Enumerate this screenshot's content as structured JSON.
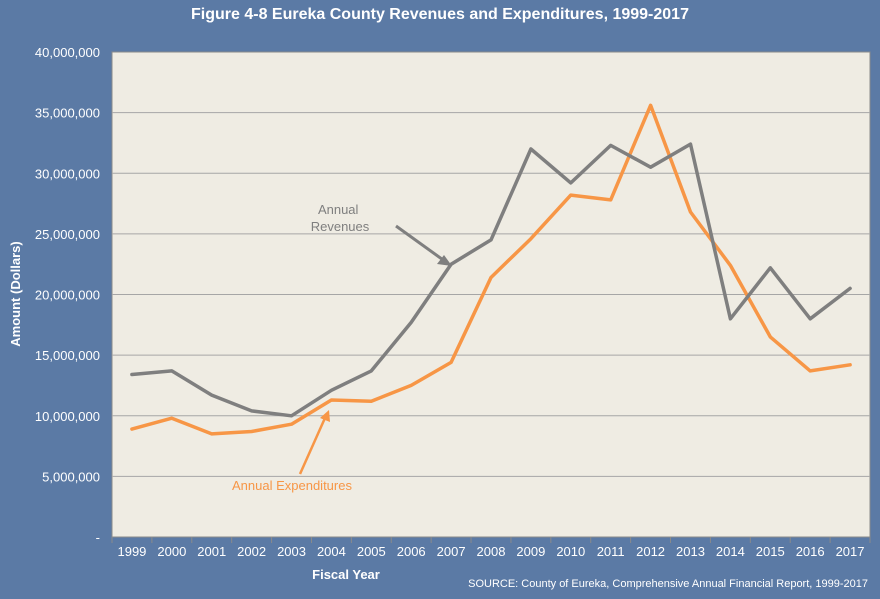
{
  "colors": {
    "background": "#5b7aa5",
    "plot_area": "#efece3",
    "revenues": "#7f7f7f",
    "expenditures": "#f79646",
    "gridline": "#a6a6a6"
  },
  "chart_data": {
    "type": "line",
    "title": "Figure 4-8 Eureka County Revenues and Expenditures, 1999-2017",
    "xlabel": "Fiscal Year",
    "ylabel": "Amount (Dollars)",
    "x": [
      "1999",
      "2000",
      "2001",
      "2002",
      "2003",
      "2004",
      "2005",
      "2006",
      "2007",
      "2008",
      "2009",
      "2010",
      "2011",
      "2012",
      "2013",
      "2014",
      "2015",
      "2016",
      "2017"
    ],
    "ylim": [
      0,
      40000000
    ],
    "yticks": [
      0,
      5000000,
      10000000,
      15000000,
      20000000,
      25000000,
      30000000,
      35000000,
      40000000
    ],
    "ytick_labels": [
      "-",
      "5,000,000",
      "10,000,000",
      "15,000,000",
      "20,000,000",
      "25,000,000",
      "30,000,000",
      "35,000,000",
      "40,000,000"
    ],
    "grid": true,
    "series": [
      {
        "name": "Annual Revenues",
        "label_lines": [
          "Annual",
          "Revenues"
        ],
        "color": "#7f7f7f",
        "values": [
          13400000,
          13700000,
          11700000,
          10400000,
          10000000,
          12100000,
          13700000,
          17700000,
          22500000,
          24500000,
          32000000,
          29200000,
          32300000,
          30500000,
          32400000,
          18000000,
          22200000,
          18000000,
          20500000
        ]
      },
      {
        "name": "Annual Expenditures",
        "label_lines": [
          "Annual Expenditures"
        ],
        "color": "#f79646",
        "values": [
          8900000,
          9800000,
          8500000,
          8700000,
          9300000,
          11300000,
          11200000,
          12500000,
          14400000,
          21400000,
          24600000,
          28200000,
          27800000,
          35600000,
          26800000,
          22400000,
          16500000,
          13700000,
          14200000
        ]
      }
    ],
    "source": "SOURCE: County of Eureka, Comprehensive Annual Financial Report, 1999-2017"
  }
}
